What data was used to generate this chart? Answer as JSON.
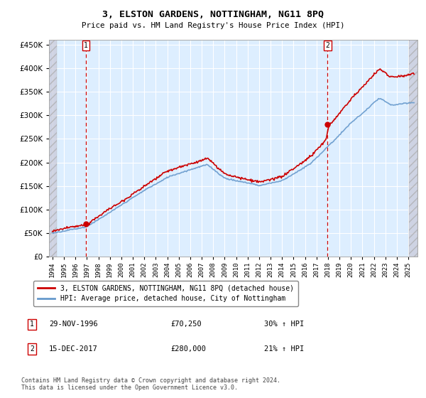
{
  "title": "3, ELSTON GARDENS, NOTTINGHAM, NG11 8PQ",
  "subtitle": "Price paid vs. HM Land Registry's House Price Index (HPI)",
  "sale1_date": "29-NOV-1996",
  "sale1_price": 70250,
  "sale1_year": 1996.92,
  "sale2_date": "15-DEC-2017",
  "sale2_price": 280000,
  "sale2_year": 2017.96,
  "legend_line1": "3, ELSTON GARDENS, NOTTINGHAM, NG11 8PQ (detached house)",
  "legend_line2": "HPI: Average price, detached house, City of Nottingham",
  "footnote": "Contains HM Land Registry data © Crown copyright and database right 2024.\nThis data is licensed under the Open Government Licence v3.0.",
  "hpi_color": "#6699cc",
  "price_color": "#cc0000",
  "sale_marker_color": "#cc0000",
  "vline_color": "#cc0000",
  "background_chart": "#ddeeff",
  "grid_color": "#ccddee",
  "ylim": [
    0,
    460000
  ],
  "xlim_start": 1993.7,
  "xlim_end": 2025.8,
  "yticks": [
    0,
    50000,
    100000,
    150000,
    200000,
    250000,
    300000,
    350000,
    400000,
    450000
  ],
  "xticks": [
    1994,
    1995,
    1996,
    1997,
    1998,
    1999,
    2000,
    2001,
    2002,
    2003,
    2004,
    2005,
    2006,
    2007,
    2008,
    2009,
    2010,
    2011,
    2012,
    2013,
    2014,
    2015,
    2016,
    2017,
    2018,
    2019,
    2020,
    2021,
    2022,
    2023,
    2024,
    2025
  ]
}
